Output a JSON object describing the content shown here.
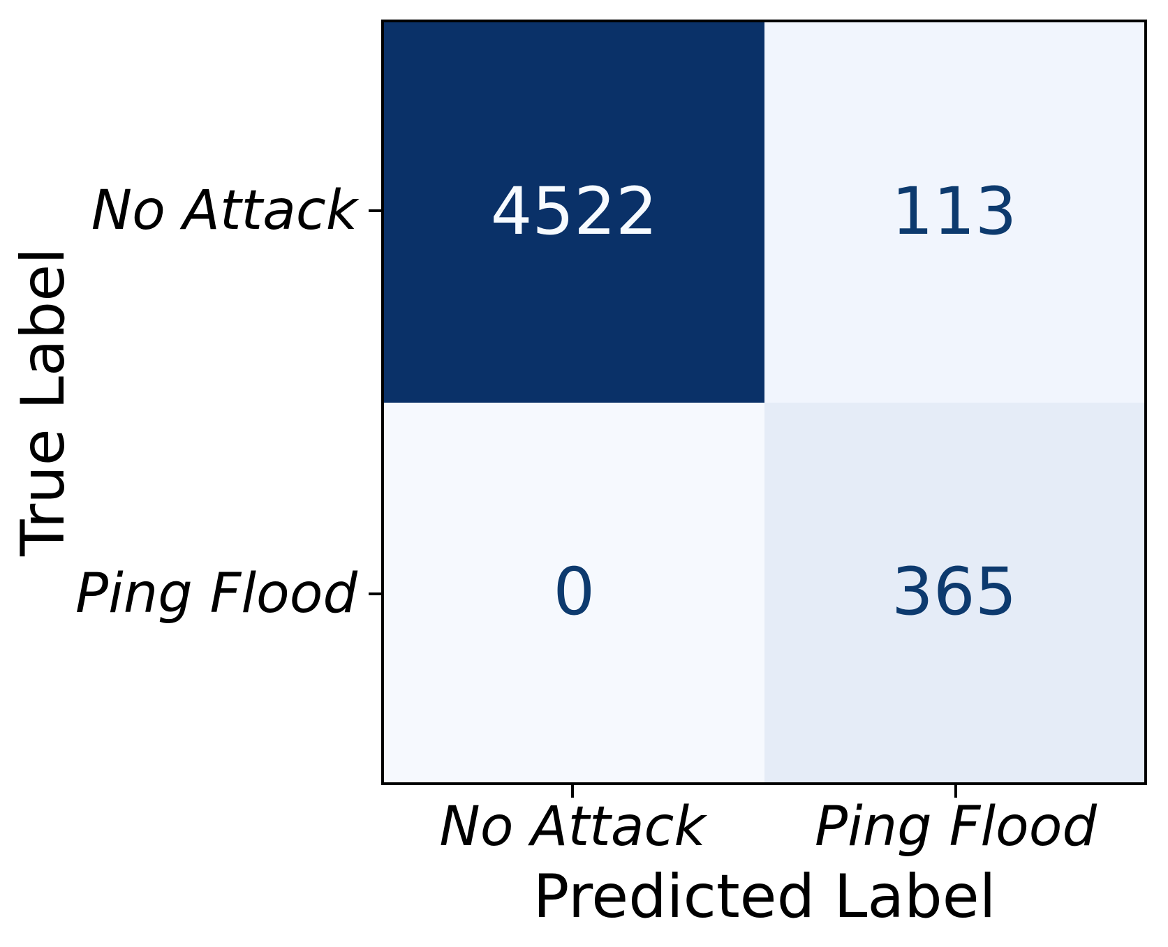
{
  "chart_data": {
    "type": "heatmap",
    "subtype": "confusion-matrix",
    "title": "",
    "xlabel": "Predicted Label",
    "ylabel": "True Label",
    "x_tick_labels": [
      "No Attack",
      "Ping Flood"
    ],
    "y_tick_labels": [
      "No Attack",
      "Ping Flood"
    ],
    "rows": [
      {
        "true_label": "No Attack",
        "values": [
          4522,
          113
        ]
      },
      {
        "true_label": "Ping Flood",
        "values": [
          0,
          365
        ]
      }
    ],
    "colormap": "Blues",
    "vmin": 0,
    "vmax": 4522,
    "legend": "none",
    "grid": false
  },
  "cells": {
    "r0c0": {
      "value": "4522",
      "bg": "#0a3168",
      "fg": "#f7fbff"
    },
    "r0c1": {
      "value": "113",
      "bg": "#f1f5fd",
      "fg": "#0d3a6e"
    },
    "r1c0": {
      "value": "0",
      "bg": "#f6f9fe",
      "fg": "#0d3a6e"
    },
    "r1c1": {
      "value": "365",
      "bg": "#e5ecf7",
      "fg": "#0d3a6e"
    }
  },
  "ticks": {
    "x": [
      "No Attack",
      "Ping Flood"
    ],
    "y": [
      "No Attack",
      "Ping Flood"
    ]
  },
  "labels": {
    "x_axis": "Predicted Label",
    "y_axis": "True Label"
  },
  "colors": {
    "background": "#ffffff",
    "spine": "#000000",
    "tick": "#000000",
    "tick_label": "#000000",
    "dark_cell": "#0a3168",
    "light_text": "#f7fbff",
    "dark_text": "#0d3a6e"
  }
}
